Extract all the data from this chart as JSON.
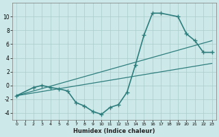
{
  "xlabel": "Humidex (Indice chaleur)",
  "xlim": [
    -0.5,
    23.5
  ],
  "ylim": [
    -5,
    12
  ],
  "xticks": [
    0,
    1,
    2,
    3,
    4,
    5,
    6,
    7,
    8,
    9,
    10,
    11,
    12,
    13,
    14,
    15,
    16,
    17,
    18,
    19,
    20,
    21,
    22,
    23
  ],
  "yticks": [
    -4,
    -2,
    0,
    2,
    4,
    6,
    8,
    10
  ],
  "bg_color": "#cde8e8",
  "line_color": "#2d7d7d",
  "grid_color": "#aacccc",
  "curve_x": [
    0,
    2,
    3,
    4,
    5,
    6,
    7,
    8,
    9,
    10,
    11,
    12,
    13,
    14,
    15,
    16,
    17,
    19,
    20,
    21,
    22,
    23
  ],
  "curve_y": [
    -1.5,
    -0.3,
    0.0,
    -0.3,
    -0.5,
    -0.8,
    -2.5,
    -3.0,
    -3.8,
    -4.2,
    -3.2,
    -2.8,
    -1.0,
    3.0,
    7.3,
    10.5,
    10.5,
    10.0,
    7.5,
    6.5,
    4.8,
    4.8
  ],
  "line1_x": [
    0,
    23
  ],
  "line1_y": [
    -1.5,
    3.2
  ],
  "line2_x": [
    0,
    23
  ],
  "line2_y": [
    -1.5,
    6.5
  ]
}
